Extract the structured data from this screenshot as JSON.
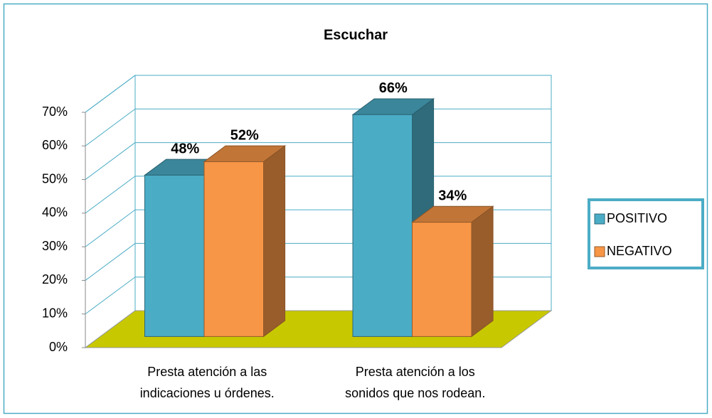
{
  "chart_data": {
    "type": "bar3d",
    "title": "Escuchar",
    "categories": [
      "Presta atención a las indicaciones u órdenes.",
      "Presta atención a los sonidos que nos rodean."
    ],
    "series": [
      {
        "name": "POSITIVO",
        "color": "#4bacc6",
        "values": [
          48,
          66
        ],
        "value_labels": [
          "48%",
          "66%"
        ]
      },
      {
        "name": "NEGATIVO",
        "color": "#f79646",
        "values": [
          52,
          34
        ],
        "value_labels": [
          "52%",
          "34%"
        ]
      }
    ],
    "ylim": [
      0,
      70
    ],
    "yticks": [
      {
        "value": 0,
        "label": "0%"
      },
      {
        "value": 10,
        "label": "10%"
      },
      {
        "value": 20,
        "label": "20%"
      },
      {
        "value": 30,
        "label": "30%"
      },
      {
        "value": 40,
        "label": "40%"
      },
      {
        "value": 50,
        "label": "50%"
      },
      {
        "value": 60,
        "label": "60%"
      },
      {
        "value": 70,
        "label": "70%"
      }
    ],
    "grid": true,
    "legend": "right",
    "floor_color": "#c8c800"
  }
}
